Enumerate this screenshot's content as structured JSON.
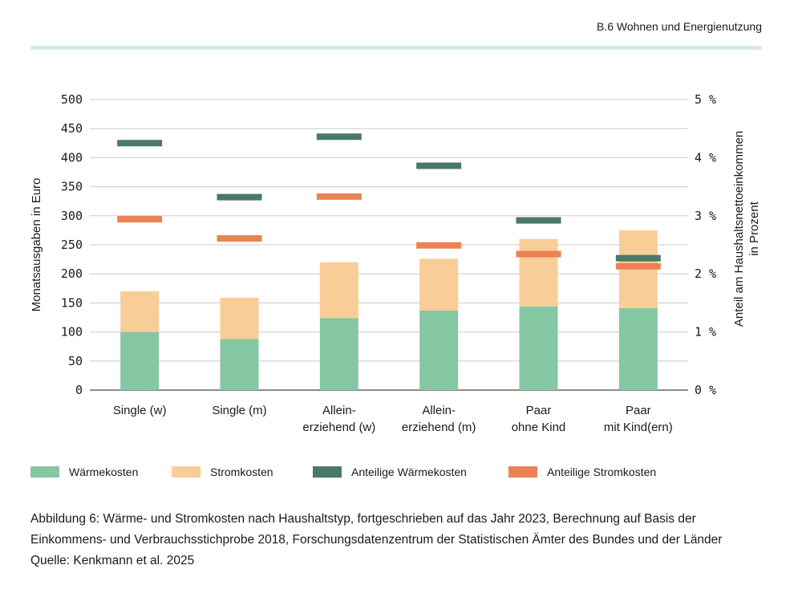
{
  "header": {
    "section_label": "B.6 Wohnen und Energienutzung"
  },
  "colors": {
    "waerme": "#85c7a2",
    "strom": "#f8cd97",
    "anteil_waerme": "#487a65",
    "anteil_strom": "#ec8155",
    "grid": "#cccccc",
    "header_rule": "#d5ecde"
  },
  "chart_data": {
    "type": "bar",
    "stacked": true,
    "categories": [
      [
        "Single (w)"
      ],
      [
        "Single (m)"
      ],
      [
        "Allein-",
        "erziehend (w)"
      ],
      [
        "Allein-",
        "erziehend (m)"
      ],
      [
        "Paar",
        "ohne Kind"
      ],
      [
        "Paar",
        "mit Kind(ern)"
      ]
    ],
    "series": [
      {
        "name": "Wärmekosten",
        "axis": "left",
        "kind": "bar",
        "values": [
          100,
          88,
          124,
          137,
          144,
          141
        ]
      },
      {
        "name": "Stromkosten",
        "axis": "left",
        "kind": "bar",
        "values": [
          70,
          71,
          96,
          89,
          116,
          134
        ]
      },
      {
        "name": "Anteilige Wärmekosten",
        "axis": "right",
        "kind": "marker",
        "values": [
          4.25,
          3.32,
          4.36,
          3.86,
          2.92,
          2.27
        ]
      },
      {
        "name": "Anteilige Stromkosten",
        "axis": "right",
        "kind": "marker",
        "values": [
          2.94,
          2.61,
          3.33,
          2.49,
          2.34,
          2.13
        ]
      }
    ],
    "ylabel": "Monatsausgaben in Euro",
    "ylabel_right": [
      "Anteil am Haushaltsnettoeinkommen",
      "in Prozent"
    ],
    "ylim": [
      0,
      500
    ],
    "ylim_right": [
      0,
      5
    ],
    "yticks": [
      "0",
      "50",
      "100",
      "150",
      "200",
      "250",
      "300",
      "350",
      "400",
      "450",
      "500"
    ],
    "yticks_right": [
      "0 %",
      "1 %",
      "2 %",
      "3 %",
      "4 %",
      "5 %"
    ],
    "grid": true,
    "legend": [
      "Wärmekosten",
      "Stromkosten",
      "Anteilige Wärmekosten",
      "Anteilige Stromkosten"
    ]
  },
  "caption": {
    "text": "Abbildung 6: Wärme- und Stromkosten nach Haushaltstyp, fortgeschrieben auf das Jahr 2023, Berechnung auf Basis der Einkommens- und Verbrauchsstichprobe 2018, Forschungsdatenzentrum der Statistischen Ämter des Bundes und der Länder",
    "source": "Quelle: Kenkmann et al. 2025"
  }
}
